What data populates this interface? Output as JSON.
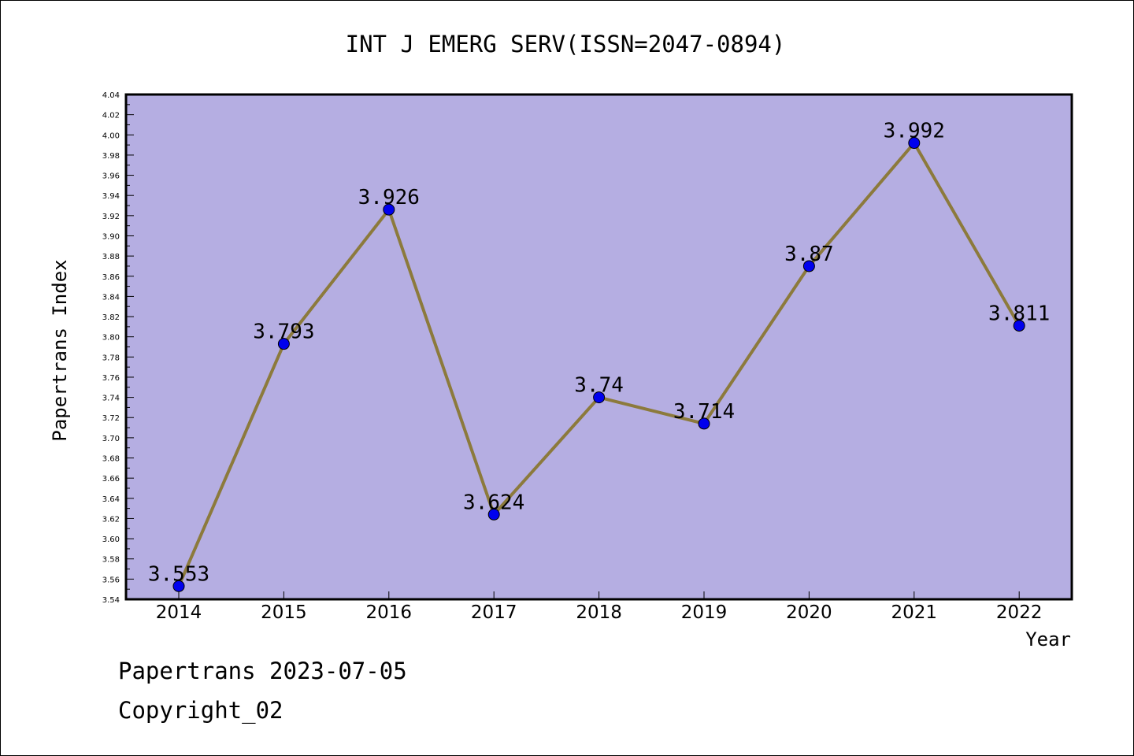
{
  "chart_data": {
    "type": "line",
    "title": "INT J EMERG SERV(ISSN=2047-0894)",
    "xlabel": "Year",
    "ylabel": "Papertrans Index",
    "categories": [
      "2014",
      "2015",
      "2016",
      "2017",
      "2018",
      "2019",
      "2020",
      "2021",
      "2022"
    ],
    "series": [
      {
        "values": [
          3.553,
          3.793,
          3.926,
          3.624,
          3.74,
          3.714,
          3.87,
          3.992,
          3.811
        ],
        "labels": [
          "3.553",
          "3.793",
          "3.926",
          "3.624",
          "3.74",
          "3.714",
          "3.87",
          "3.992",
          "3.811"
        ]
      }
    ],
    "ylim": [
      3.54,
      4.04
    ],
    "yticks": [
      "3.54",
      "3.56",
      "3.58",
      "3.60",
      "3.62",
      "3.64",
      "3.66",
      "3.68",
      "3.70",
      "3.72",
      "3.74",
      "3.76",
      "3.78",
      "3.80",
      "3.82",
      "3.84",
      "3.86",
      "3.88",
      "3.90",
      "3.92",
      "3.94",
      "3.96",
      "3.98",
      "4.00",
      "4.02",
      "4.04"
    ],
    "grid": false,
    "legend": "none",
    "colors": {
      "plot_background": "#b5aee2",
      "line": "#8c7a3c",
      "marker": "#0000ee",
      "axis": "#000000"
    }
  },
  "footer": {
    "line1": "Papertrans 2023-07-05",
    "line2": "Copyright_02"
  }
}
